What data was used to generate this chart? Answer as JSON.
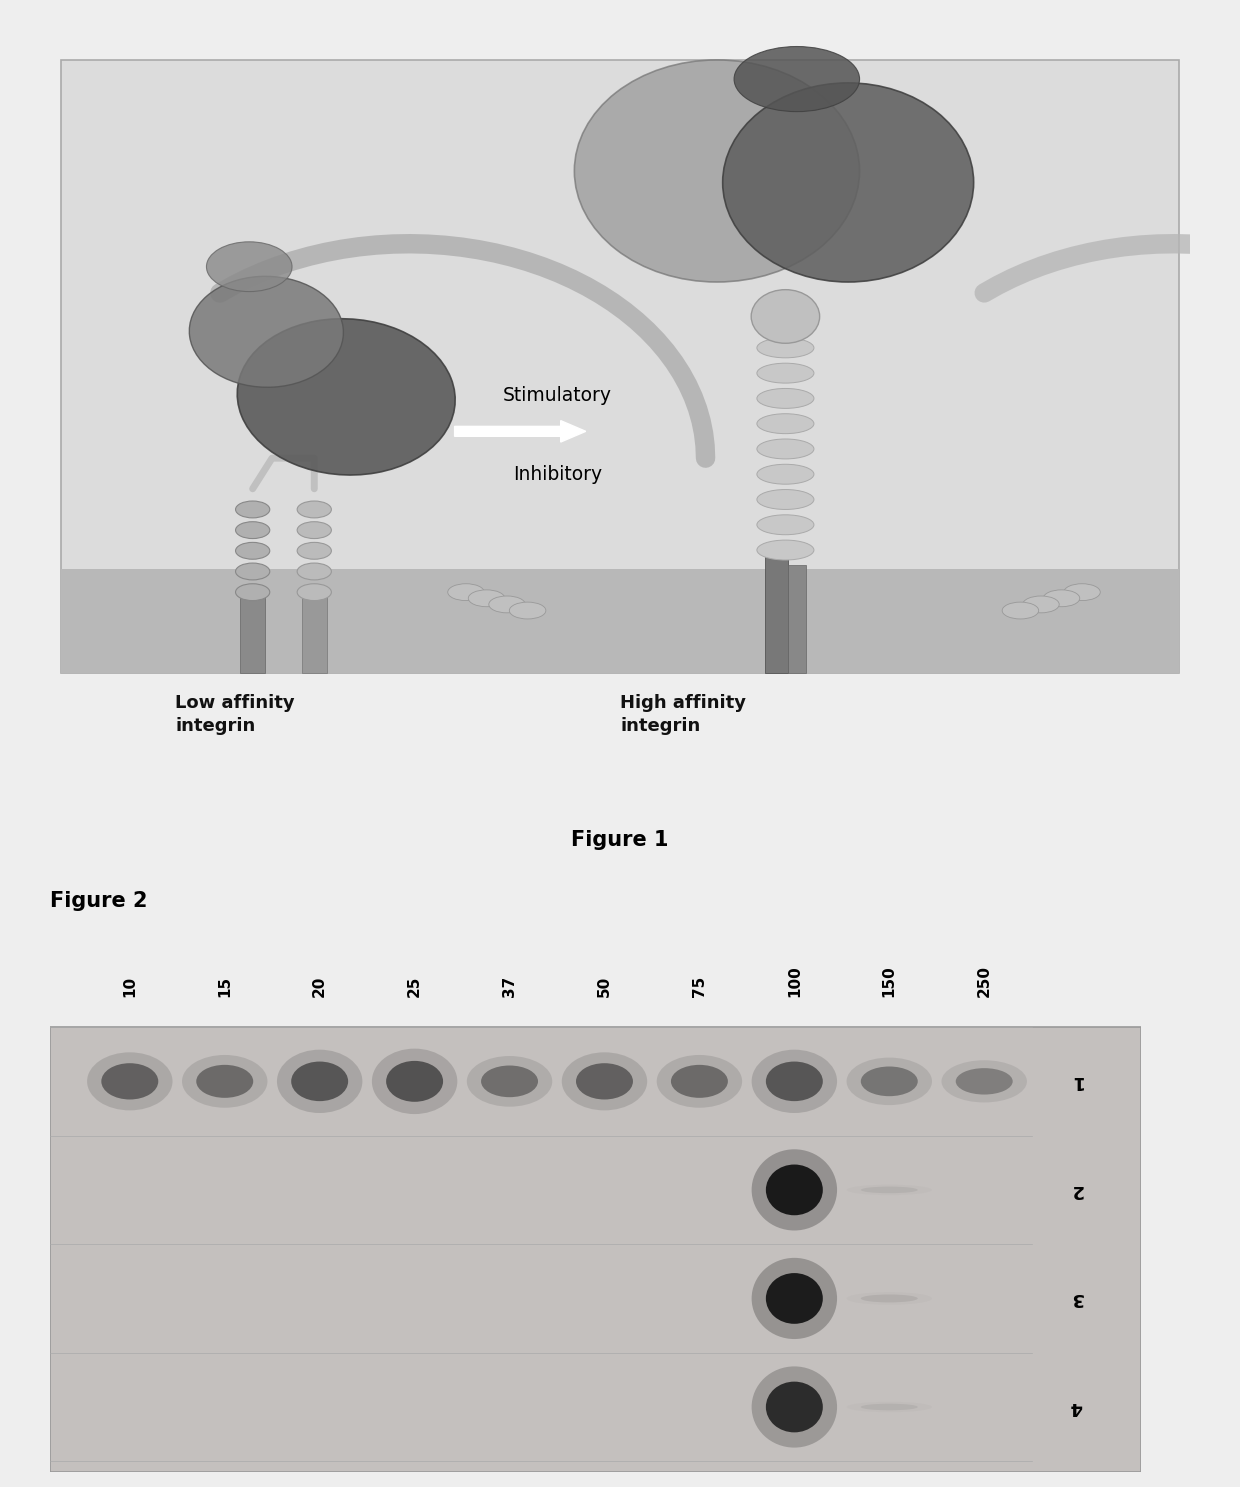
{
  "fig1_title": "Figure 1",
  "fig2_title": "Figure 2",
  "fig1_labels": {
    "stimulatory": "Stimulatory",
    "inhibitory": "Inhibitory",
    "low_affinity": "Low affinity\nintegrin",
    "high_affinity": "High affinity\nintegrin"
  },
  "fig2_columns": [
    "10",
    "15",
    "20",
    "25",
    "37",
    "50",
    "75",
    "100",
    "150",
    "250"
  ],
  "fig2_rows": [
    "1",
    "2",
    "3",
    "4"
  ],
  "page_bg": "#eeeeee",
  "fig1_bg": "#e0e0e0",
  "fig1_membrane_color": "#c8c8c8",
  "fig1_border_color": "#aaaaaa",
  "gel_bg": "#c0bfbf",
  "band_dark": "#2a2a2a",
  "row1_cols_with_bands": [
    0,
    1,
    2,
    3,
    4,
    5,
    6,
    7,
    8,
    9
  ],
  "row1_intensities": [
    0.55,
    0.5,
    0.6,
    0.62,
    0.48,
    0.55,
    0.5,
    0.6,
    0.45,
    0.4
  ],
  "row2_intensities": [
    0.0,
    0.0,
    0.0,
    0.0,
    0.0,
    0.0,
    0.0,
    0.9,
    0.1,
    0.0
  ],
  "row3_intensities": [
    0.0,
    0.0,
    0.0,
    0.0,
    0.0,
    0.0,
    0.0,
    0.88,
    0.12,
    0.0
  ],
  "row4_intensities": [
    0.0,
    0.0,
    0.0,
    0.0,
    0.0,
    0.0,
    0.0,
    0.8,
    0.1,
    0.0
  ],
  "col_label_rotation": 90,
  "row_label_rotation": 180
}
